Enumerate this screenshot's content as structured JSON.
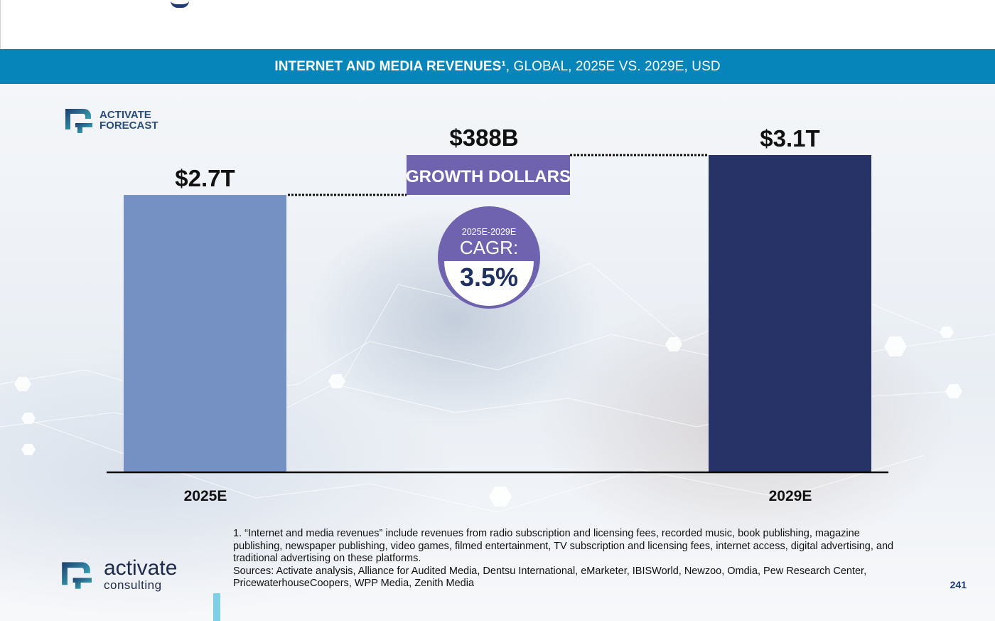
{
  "header": {
    "title_bold": "INTERNET AND MEDIA REVENUES¹",
    "title_rest": ", GLOBAL, 2025E VS. 2029E, USD"
  },
  "badge": {
    "line1": "ACTIVATE",
    "line2": "FORECAST"
  },
  "chart_data": {
    "type": "bar",
    "categories": [
      "2025E",
      "2029E"
    ],
    "values": [
      2.7,
      3.088
    ],
    "data_labels": [
      "$2.7T",
      "$3.1T"
    ],
    "unit": "USD trillions",
    "ylim": [
      0,
      3.088
    ],
    "colors": [
      "#7590c3",
      "#273266"
    ],
    "growth": {
      "label": "GROWTH DOLLARS",
      "value_label": "$388B",
      "value": 388
    },
    "cagr": {
      "period": "2025E-2029E",
      "label": "CAGR:",
      "value_label": "3.5%",
      "value": 3.5
    },
    "grid": false,
    "legend": "none"
  },
  "footnotes": {
    "note1": "1. “Internet and media revenues” include revenues from radio subscription and licensing fees, recorded music, book publishing, magazine publishing, newspaper publishing, video games, filmed entertainment, TV subscription and licensing fees, internet access, digital advertising, and traditional advertising on these platforms.",
    "sources": "Sources: Activate analysis, Alliance for Audited Media, Dentsu International, eMarketer, IBISWorld, Newzoo, Omdia, Pew Research Center, PricewaterhouseCoopers, WPP Media, Zenith Media"
  },
  "logo": {
    "word1": "activate",
    "word2": "consulting"
  },
  "page_number": "241",
  "colors": {
    "header": "#0585b9",
    "growth_box": "#6f63b0",
    "cagr_text": "#1f2f5f"
  }
}
